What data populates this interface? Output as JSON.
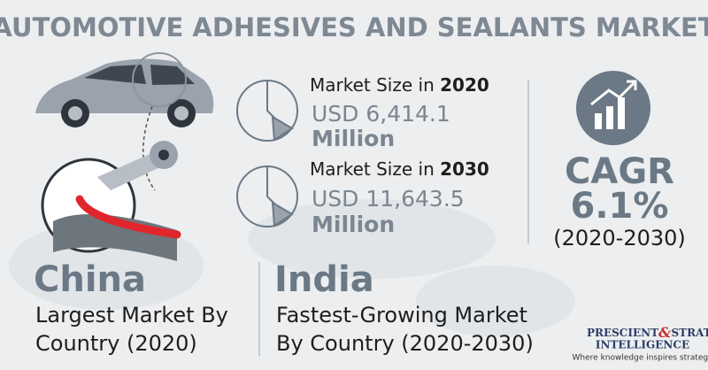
{
  "header": {
    "title": "AUTOMOTIVE ADHESIVES AND SEALANTS MARKET"
  },
  "stats": [
    {
      "label": "Market Size in ",
      "year": "2020",
      "value": "USD 6,414.1",
      "unit": "Million"
    },
    {
      "label": "Market Size in ",
      "year": "2030",
      "value": "USD 11,643.5",
      "unit": "Million"
    }
  ],
  "cagr": {
    "label": "CAGR",
    "value": "6.1%",
    "period": "(2020-2030)"
  },
  "regions": [
    {
      "name": "China",
      "lines": [
        "Largest Market By",
        "Country (2020)"
      ]
    },
    {
      "name": "India",
      "lines": [
        "Fastest-Growing Market",
        "By Country (2020-2030)"
      ]
    }
  ],
  "logo": {
    "line1": [
      "PRESCIENT",
      "&",
      "STRATEGIC"
    ],
    "line2": "INTELLIGENCE",
    "tagline": "Where knowledge inspires strategy"
  }
}
